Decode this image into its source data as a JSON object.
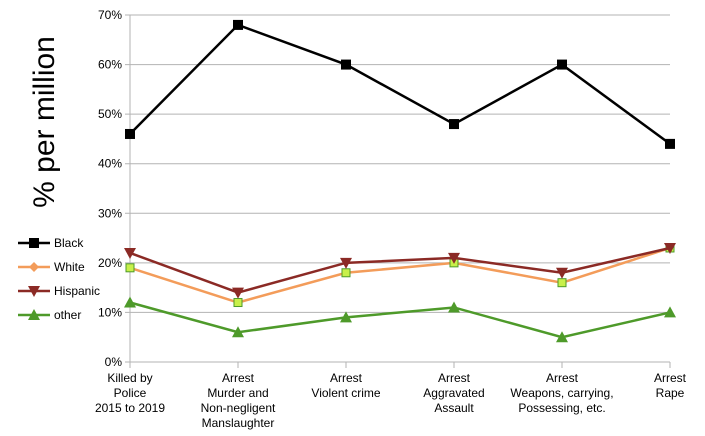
{
  "chart_data": {
    "type": "line",
    "title": "",
    "xlabel": "",
    "ylabel": "% per million",
    "ylim": [
      0,
      70
    ],
    "y_ticks": [
      "0%",
      "10%",
      "20%",
      "30%",
      "40%",
      "50%",
      "60%",
      "70%"
    ],
    "y_tick_values": [
      0,
      10,
      20,
      30,
      40,
      50,
      60,
      70
    ],
    "grid": "horizontal",
    "legend": "left",
    "categories": [
      [
        "Killed by",
        "Police",
        "2015 to 2019"
      ],
      [
        "Arrest",
        "Murder and",
        "Non-negligent",
        "Manslaughter"
      ],
      [
        "Arrest",
        "Violent crime"
      ],
      [
        "Arrest",
        "Aggravated",
        "Assault"
      ],
      [
        "Arrest",
        "Weapons, carrying,",
        "Possessing, etc."
      ],
      [
        "Arrest",
        "Rape"
      ]
    ],
    "series": [
      {
        "name": "Black",
        "values": [
          46,
          68,
          60,
          48,
          60,
          44
        ],
        "color": "#000000",
        "marker": "square"
      },
      {
        "name": "White",
        "values": [
          19,
          12,
          18,
          20,
          16,
          23
        ],
        "color": "#f39c5a",
        "marker": "diamond"
      },
      {
        "name": "Hispanic",
        "values": [
          22,
          14,
          20,
          21,
          18,
          23
        ],
        "color": "#8b2a25",
        "marker": "triangle-down"
      },
      {
        "name": "other",
        "values": [
          12,
          6,
          9,
          11,
          5,
          10
        ],
        "color": "#4e9a2a",
        "marker": "triangle-up"
      }
    ]
  }
}
